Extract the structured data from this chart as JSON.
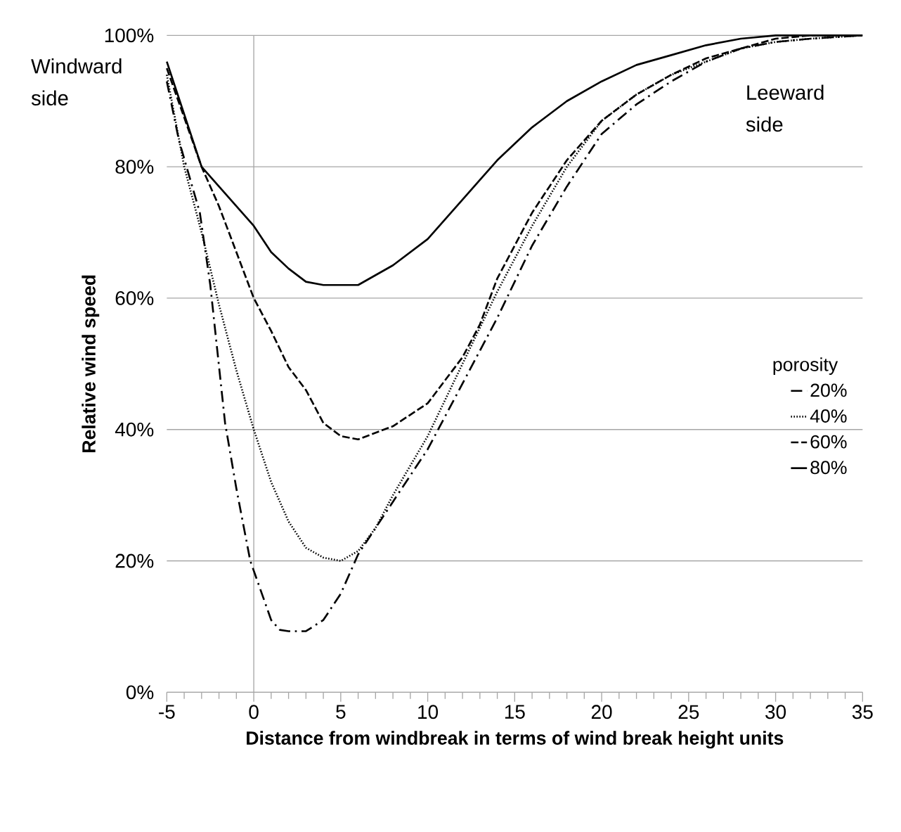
{
  "chart_data": {
    "type": "line",
    "xlabel": "Distance from windbreak in terms of wind break height units",
    "ylabel": "Relative wind speed",
    "legend_title": "porosity",
    "annotations": [
      "Windward side",
      "Leeward side"
    ],
    "xlim": [
      -5,
      35
    ],
    "xticks": [
      -5,
      0,
      5,
      10,
      15,
      20,
      25,
      30,
      35
    ],
    "ylim": [
      0,
      100
    ],
    "yticks": [
      {
        "value": 0,
        "label": "0%"
      },
      {
        "value": 20,
        "label": "20%"
      },
      {
        "value": 40,
        "label": "40%"
      },
      {
        "value": 60,
        "label": "60%"
      },
      {
        "value": 80,
        "label": "80%"
      },
      {
        "value": 100,
        "label": "100%"
      }
    ],
    "grid": "y",
    "legend": "right",
    "marker": "none",
    "ref_lines": [
      {
        "axis": "x",
        "value": 0,
        "color": "#a6a6a6"
      }
    ],
    "series": [
      {
        "name": "20%",
        "color": "#000000",
        "line_style": "dashdot",
        "x": [
          -5,
          -4.3,
          -3.1,
          -2.5,
          -1.65,
          -1,
          -0.2,
          1,
          1.5,
          2,
          3,
          4,
          5,
          6,
          8,
          10,
          12,
          14,
          16,
          18,
          20,
          22,
          24,
          26,
          28,
          30,
          32,
          35
        ],
        "values": [
          93,
          84,
          73,
          62,
          41,
          31,
          20,
          11,
          9.5,
          9.3,
          9.3,
          11,
          15,
          21,
          29,
          37,
          47,
          57,
          68,
          77,
          85,
          89.5,
          93,
          96,
          98,
          99,
          99.5,
          100
        ]
      },
      {
        "name": "40%",
        "color": "#000000",
        "line_style": "dotted",
        "x": [
          -5,
          -4,
          -3,
          -2,
          -1,
          0,
          1,
          2,
          3,
          4,
          5,
          6,
          7,
          8,
          10,
          12,
          14,
          16,
          18,
          20,
          22,
          24,
          26,
          28,
          30,
          32,
          35
        ],
        "values": [
          94,
          80,
          70,
          59,
          49,
          40,
          32,
          26,
          22,
          20.5,
          20,
          21.5,
          25,
          30,
          39,
          50,
          61,
          71,
          80,
          87,
          91,
          94,
          96,
          98,
          99,
          99.5,
          100
        ]
      },
      {
        "name": "60%",
        "color": "#000000",
        "line_style": "dashed",
        "x": [
          -5,
          -3,
          -2,
          -1,
          0,
          1,
          2,
          3,
          4,
          5,
          6,
          8,
          10,
          12,
          13,
          14,
          15,
          16,
          17,
          18,
          20,
          22,
          24,
          26,
          28,
          30,
          32,
          35
        ],
        "values": [
          95,
          80,
          74,
          67,
          60,
          55,
          49.5,
          46,
          41,
          39,
          38.5,
          40.5,
          44,
          51,
          56,
          63,
          68,
          73,
          77,
          81,
          87,
          91,
          94,
          96.5,
          98,
          99.5,
          100,
          100
        ]
      },
      {
        "name": "80%",
        "color": "#000000",
        "line_style": "solid",
        "x": [
          -5,
          -4,
          -3,
          -2,
          -1,
          0,
          1,
          2,
          3,
          4,
          5,
          6,
          7,
          8,
          10,
          12,
          14,
          16,
          18,
          20,
          22,
          24,
          26,
          28,
          30,
          35
        ],
        "values": [
          96,
          88,
          80,
          77,
          74,
          71,
          67,
          64.5,
          62.5,
          62,
          62,
          62,
          63.5,
          65,
          69,
          75,
          81,
          86,
          90,
          93,
          95.5,
          97,
          98.5,
          99.5,
          100,
          100
        ]
      }
    ]
  }
}
